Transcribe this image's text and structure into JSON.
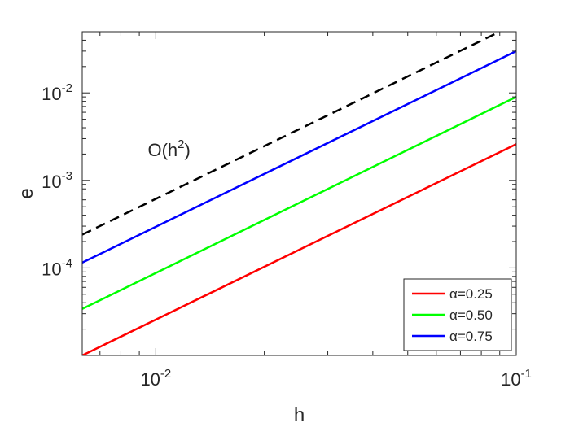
{
  "chart_data": {
    "type": "line",
    "xlabel": "h",
    "ylabel": "e",
    "x_scale": "log",
    "y_scale": "log",
    "xlim": [
      0.00625,
      0.1
    ],
    "ylim": [
      1e-05,
      0.05
    ],
    "grid": false,
    "legend_position": "bottom-right",
    "x_ticks": [
      {
        "value": 0.01,
        "base": "10",
        "exp": "-2"
      },
      {
        "value": 0.1,
        "base": "10",
        "exp": "-1"
      }
    ],
    "y_ticks": [
      {
        "value": 0.0001,
        "base": "10",
        "exp": "-4"
      },
      {
        "value": 0.001,
        "base": "10",
        "exp": "-3"
      },
      {
        "value": 0.01,
        "base": "10",
        "exp": "-2"
      }
    ],
    "series": [
      {
        "name": "α=0.25",
        "color": "#ff0000",
        "dash": "solid",
        "x": [
          0.00625,
          0.1
        ],
        "y": [
          1e-05,
          0.0026
        ]
      },
      {
        "name": "α=0.50",
        "color": "#00ff00",
        "dash": "solid",
        "x": [
          0.00625,
          0.1
        ],
        "y": [
          3.4e-05,
          0.009
        ]
      },
      {
        "name": "α=0.75",
        "color": "#0000ff",
        "dash": "solid",
        "x": [
          0.00625,
          0.1
        ],
        "y": [
          0.000115,
          0.03
        ]
      },
      {
        "name": "",
        "color": "#000000",
        "dash": "dashed",
        "x": [
          0.00625,
          0.09
        ],
        "y": [
          0.00024,
          0.05
        ]
      }
    ],
    "annotations": [
      {
        "base": "O(h",
        "exp": "2",
        "suffix": ")",
        "x": 0.0095,
        "y": 0.0019
      }
    ]
  }
}
